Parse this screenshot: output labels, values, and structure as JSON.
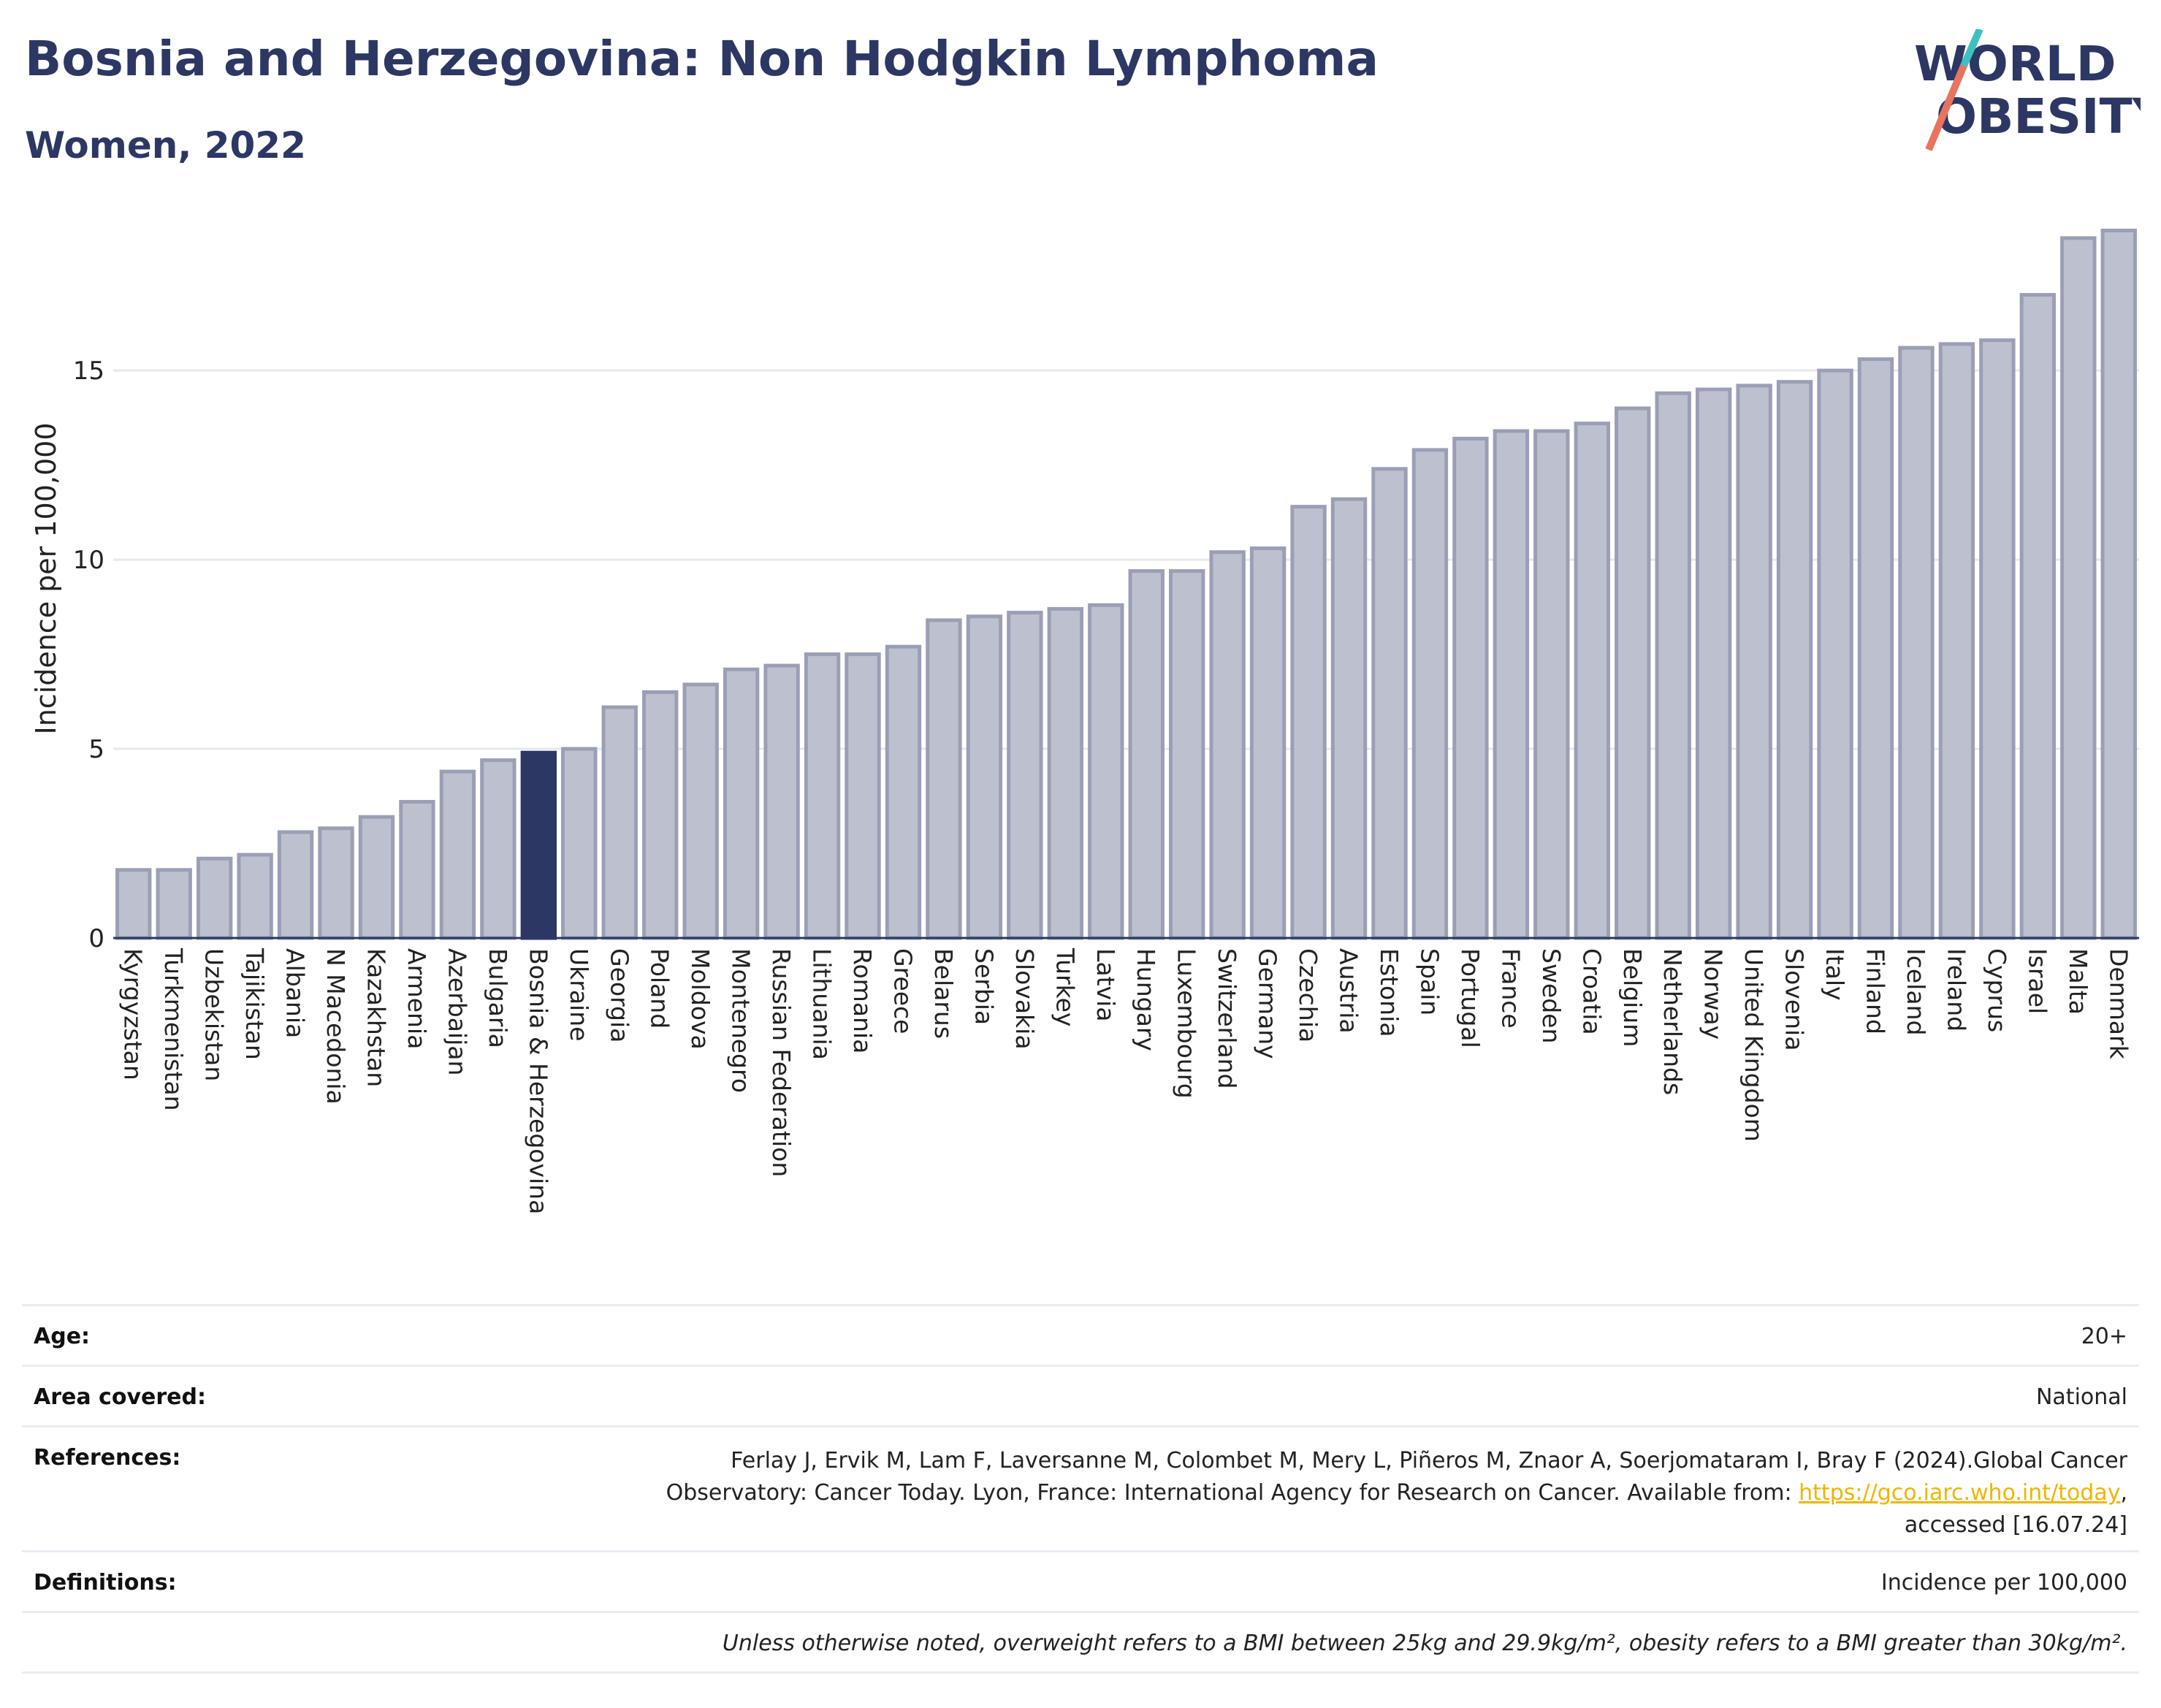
{
  "header": {
    "title": "Bosnia and Herzegovina: Non Hodgkin Lymphoma",
    "subtitle": "Women, 2022"
  },
  "logo": {
    "line1": "WORLD",
    "line2": "OBESITY",
    "accent_teal": "#3ec1be",
    "accent_coral": "#e8735e",
    "text_color": "#2c3764"
  },
  "chart_data": {
    "type": "bar",
    "ylabel": "Incidence per 100,000",
    "ylim": [
      0,
      19
    ],
    "yticks": [
      0,
      5,
      10,
      15
    ],
    "grid": true,
    "highlight": "Bosnia & Herzegovina",
    "bar_color": "#bdc1cf",
    "bar_edge": "#9a9fb5",
    "highlight_color": "#2c3764",
    "categories": [
      "Kyrgyzstan",
      "Turkmenistan",
      "Uzbekistan",
      "Tajikistan",
      "Albania",
      "N Macedonia",
      "Kazakhstan",
      "Armenia",
      "Azerbaijan",
      "Bulgaria",
      "Bosnia & Herzegovina",
      "Ukraine",
      "Georgia",
      "Poland",
      "Moldova",
      "Montenegro",
      "Russian Federation",
      "Lithuania",
      "Romania",
      "Greece",
      "Belarus",
      "Serbia",
      "Slovakia",
      "Turkey",
      "Latvia",
      "Hungary",
      "Luxembourg",
      "Switzerland",
      "Germany",
      "Czechia",
      "Austria",
      "Estonia",
      "Spain",
      "Portugal",
      "France",
      "Sweden",
      "Croatia",
      "Belgium",
      "Netherlands",
      "Norway",
      "United Kingdom",
      "Slovenia",
      "Italy",
      "Finland",
      "Iceland",
      "Ireland",
      "Cyprus",
      "Israel",
      "Malta",
      "Denmark"
    ],
    "values": [
      1.8,
      1.8,
      2.1,
      2.2,
      2.8,
      2.9,
      3.2,
      3.6,
      4.4,
      4.7,
      4.9,
      5.0,
      6.1,
      6.5,
      6.7,
      7.1,
      7.2,
      7.5,
      7.5,
      7.7,
      8.4,
      8.5,
      8.6,
      8.7,
      8.8,
      9.7,
      9.7,
      10.2,
      10.3,
      11.4,
      11.6,
      12.4,
      12.9,
      13.2,
      13.4,
      13.4,
      13.6,
      14.0,
      14.4,
      14.5,
      14.6,
      14.7,
      15.0,
      15.3,
      15.6,
      15.7,
      15.8,
      17.0,
      18.5,
      18.7
    ]
  },
  "info": {
    "age": {
      "label": "Age:",
      "value": "20+"
    },
    "area": {
      "label": "Area covered:",
      "value": "National"
    },
    "references": {
      "label": "References:",
      "line1": "Ferlay J, Ervik M, Lam F, Laversanne M, Colombet M, Mery L, Piñeros M, Znaor A, Soerjomataram I, Bray F (2024).Global Cancer",
      "line2_prefix": "Observatory: Cancer Today. Lyon, France: International Agency for Research on Cancer. Available from: ",
      "link": "https://gco.iarc.who.int/today",
      "line2_suffix": ",",
      "line3": "accessed [16.07.24]"
    },
    "definitions": {
      "label": "Definitions:",
      "value": "Incidence per 100,000"
    },
    "note": "Unless otherwise noted, overweight refers to a BMI between 25kg and 29.9kg/m², obesity refers to a BMI greater than 30kg/m²."
  }
}
